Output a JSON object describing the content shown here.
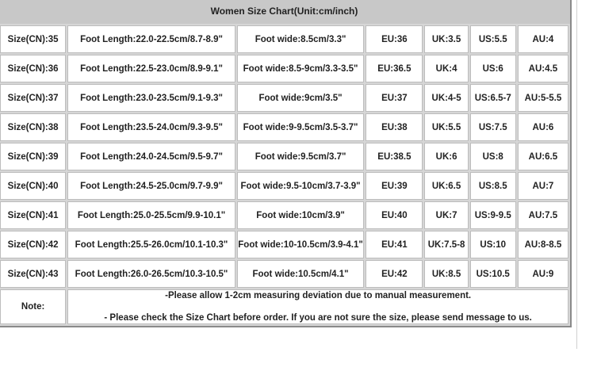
{
  "title": "Women Size Chart(Unit:cm/inch)",
  "rows": [
    [
      "Size(CN):35",
      "Foot Length:22.0-22.5cm/8.7-8.9\"",
      "Foot wide:8.5cm/3.3\"",
      "EU:36",
      "UK:3.5",
      "US:5.5",
      "AU:4"
    ],
    [
      "Size(CN):36",
      "Foot Length:22.5-23.0cm/8.9-9.1\"",
      "Foot wide:8.5-9cm/3.3-3.5\"",
      "EU:36.5",
      "UK:4",
      "US:6",
      "AU:4.5"
    ],
    [
      "Size(CN):37",
      "Foot Length:23.0-23.5cm/9.1-9.3\"",
      "Foot wide:9cm/3.5\"",
      "EU:37",
      "UK:4-5",
      "US:6.5-7",
      "AU:5-5.5"
    ],
    [
      "Size(CN):38",
      "Foot Length:23.5-24.0cm/9.3-9.5\"",
      "Foot wide:9-9.5cm/3.5-3.7\"",
      "EU:38",
      "UK:5.5",
      "US:7.5",
      "AU:6"
    ],
    [
      "Size(CN):39",
      "Foot Length:24.0-24.5cm/9.5-9.7\"",
      "Foot wide:9.5cm/3.7\"",
      "EU:38.5",
      "UK:6",
      "US:8",
      "AU:6.5"
    ],
    [
      "Size(CN):40",
      "Foot Length:24.5-25.0cm/9.7-9.9\"",
      "Foot wide:9.5-10cm/3.7-3.9\"",
      "EU:39",
      "UK:6.5",
      "US:8.5",
      "AU:7"
    ],
    [
      "Size(CN):41",
      "Foot Length:25.0-25.5cm/9.9-10.1\"",
      "Foot wide:10cm/3.9\"",
      "EU:40",
      "UK:7",
      "US:9-9.5",
      "AU:7.5"
    ],
    [
      "Size(CN):42",
      "Foot Length:25.5-26.0cm/10.1-10.3\"",
      "Foot wide:10-10.5cm/3.9-4.1\"",
      "EU:41",
      "UK:7.5-8",
      "US:10",
      "AU:8-8.5"
    ],
    [
      "Size(CN):43",
      "Foot Length:26.0-26.5cm/10.3-10.5\"",
      "Foot wide:10.5cm/4.1\"",
      "EU:42",
      "UK:8.5",
      "US:10.5",
      "AU:9"
    ]
  ],
  "note": {
    "label": "Note:",
    "line1": "-Please allow 1-2cm measuring deviation due to manual measurement.",
    "line2": "- Please check the Size Chart before order. If you are not sure the size, please send message to us."
  }
}
